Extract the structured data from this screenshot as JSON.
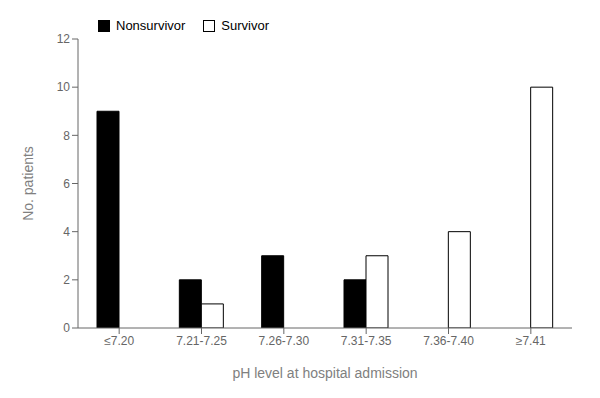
{
  "chart_data": {
    "type": "bar",
    "categories": [
      "≤7.20",
      "7.21-7.25",
      "7.26-7.30",
      "7.31-7.35",
      "7.36-7.40",
      "≥7.41"
    ],
    "series": [
      {
        "name": "Nonsurvivor",
        "color": "#000000",
        "values": [
          9,
          2,
          3,
          2,
          0,
          0
        ]
      },
      {
        "name": "Survivor",
        "color": "#ffffff",
        "values": [
          0,
          1,
          0,
          3,
          4,
          10
        ]
      }
    ],
    "xlabel": "pH level at hospital admission",
    "ylabel": "No. patients",
    "ylim": [
      0,
      12
    ],
    "yticks": [
      0,
      2,
      4,
      6,
      8,
      10,
      12
    ],
    "grid": false,
    "legend": "upper left"
  }
}
